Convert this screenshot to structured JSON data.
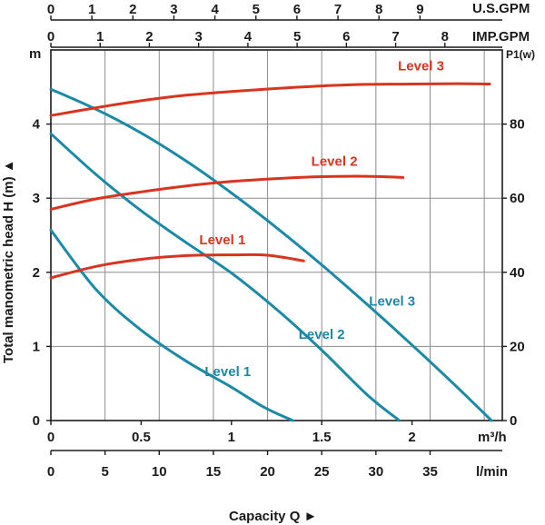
{
  "chart_data": {
    "type": "line",
    "title": "",
    "xlabel": "Capacity Q ►",
    "ylabel": "Total manometric head H (m) ▲",
    "colors": {
      "head": "#1a8aa6",
      "power": "#d9341f",
      "grid": "#8c8c8c",
      "axis": "#1a1a1a"
    },
    "axes": {
      "left": {
        "unit": "m",
        "range": [
          0,
          5
        ],
        "ticks": [
          "0",
          "1",
          "2",
          "3",
          "4"
        ],
        "tick_values": [
          0,
          1,
          2,
          3,
          4
        ]
      },
      "right": {
        "unit": "P1(w)",
        "range": [
          0,
          100
        ],
        "ticks": [
          "0",
          "20",
          "40",
          "60",
          "80"
        ],
        "tick_values": [
          0,
          20,
          40,
          60,
          80
        ]
      },
      "bottom_m3h": {
        "unit": "m³/h",
        "range": [
          0,
          2.5
        ],
        "ticks": [
          "0",
          "0.5",
          "1",
          "1.5",
          "2"
        ],
        "tick_values": [
          0,
          0.5,
          1,
          1.5,
          2
        ]
      },
      "bottom_lmin": {
        "unit": "l/min",
        "ticks": [
          "0",
          "5",
          "10",
          "15",
          "20",
          "25",
          "30",
          "35"
        ],
        "tick_values": [
          0,
          5,
          10,
          15,
          20,
          25,
          30,
          35
        ]
      },
      "top_usgpm": {
        "unit": "U.S.GPM",
        "ticks": [
          "0",
          "1",
          "2",
          "3",
          "4",
          "5",
          "6",
          "7",
          "8",
          "9"
        ],
        "tick_values": [
          0,
          1,
          2,
          3,
          4,
          5,
          6,
          7,
          8,
          9
        ]
      },
      "top_impgpm": {
        "unit": "IMP.GPM",
        "ticks": [
          "0",
          "1",
          "2",
          "3",
          "4",
          "5",
          "6",
          "7",
          "8"
        ],
        "tick_values": [
          0,
          1,
          2,
          3,
          4,
          5,
          6,
          7,
          8
        ]
      }
    },
    "grid": true,
    "x_gridlines_m3h": [
      0.3,
      0.6,
      0.9,
      1.2,
      1.5,
      1.8,
      2.1,
      2.4
    ],
    "y_gridlines_m": [
      1,
      2,
      3,
      4,
      5
    ],
    "head_series": [
      {
        "name": "Level 1",
        "x": [
          0,
          0.25,
          0.5,
          0.75,
          1.0,
          1.18,
          1.34
        ],
        "y": [
          2.57,
          1.77,
          1.22,
          0.8,
          0.45,
          0.18,
          0
        ]
      },
      {
        "name": "Level 2",
        "x": [
          0,
          0.25,
          0.5,
          0.75,
          1.0,
          1.25,
          1.5,
          1.75,
          1.93
        ],
        "y": [
          3.87,
          3.32,
          2.83,
          2.4,
          1.99,
          1.5,
          0.95,
          0.35,
          0
        ]
      },
      {
        "name": "Level 3",
        "x": [
          0,
          0.25,
          0.5,
          0.75,
          1.0,
          1.25,
          1.5,
          1.75,
          2.0,
          2.25,
          2.44
        ],
        "y": [
          4.47,
          4.2,
          3.88,
          3.5,
          3.07,
          2.6,
          2.1,
          1.57,
          1.02,
          0.45,
          0
        ]
      }
    ],
    "power_series": [
      {
        "name": "Level 1",
        "x": [
          0,
          0.25,
          0.5,
          0.75,
          1.0,
          1.2,
          1.4
        ],
        "y": [
          38.5,
          41.6,
          43.5,
          44.5,
          44.7,
          44.6,
          43.1
        ]
      },
      {
        "name": "Level 2",
        "x": [
          0,
          0.25,
          0.5,
          0.75,
          1.0,
          1.25,
          1.5,
          1.75,
          1.95
        ],
        "y": [
          57,
          59.8,
          61.7,
          63.3,
          64.5,
          65.3,
          65.8,
          65.9,
          65.6
        ]
      },
      {
        "name": "Level 3",
        "x": [
          0,
          0.25,
          0.5,
          0.75,
          1.0,
          1.25,
          1.5,
          1.75,
          2.0,
          2.25,
          2.43
        ],
        "y": [
          82.3,
          84.4,
          86.3,
          87.8,
          88.8,
          89.6,
          90.3,
          90.7,
          90.8,
          90.9,
          90.8
        ]
      }
    ],
    "series_label_anchors": {
      "power": [
        {
          "name": "Level 1",
          "x": 0.95,
          "y": 47.5
        },
        {
          "name": "Level 2",
          "x": 1.57,
          "y": 68.8
        },
        {
          "name": "Level 3",
          "x": 2.05,
          "y": 94.5
        }
      ],
      "head": [
        {
          "name": "Level 1",
          "x": 0.98,
          "y": 0.6
        },
        {
          "name": "Level 2",
          "x": 1.5,
          "y": 1.1
        },
        {
          "name": "Level 3",
          "x": 1.89,
          "y": 1.55
        }
      ]
    }
  }
}
